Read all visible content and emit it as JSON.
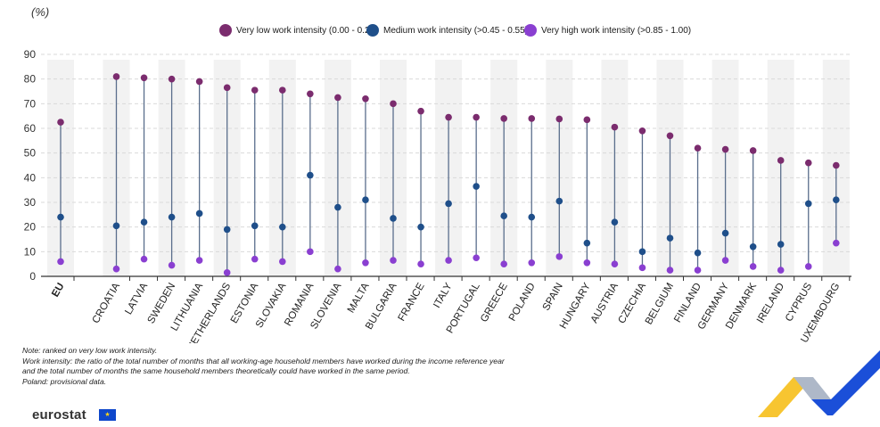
{
  "unit_label": "(%)",
  "chart_data": {
    "type": "scatter",
    "style": "dot-plot with vertical range lines",
    "categories": [
      "EU",
      "CROATIA",
      "LATVIA",
      "SWEDEN",
      "LITHUANIA",
      "NETHERLANDS",
      "ESTONIA",
      "SLOVAKIA",
      "ROMANIA",
      "SLOVENIA",
      "MALTA",
      "BULGARIA",
      "FRANCE",
      "ITALY",
      "PORTUGAL",
      "GREECE",
      "POLAND",
      "SPAIN",
      "HUNGARY",
      "AUSTRIA",
      "CZECHIA",
      "BELGIUM",
      "FINLAND",
      "GERMANY",
      "DENMARK",
      "IRELAND",
      "CYPRUS",
      "LUXEMBOURG"
    ],
    "series": [
      {
        "name": "Very low work intensity (0.00 - 0.20)",
        "color": "#7b2c6e",
        "values": [
          62.5,
          81,
          80.5,
          80,
          79,
          76.5,
          75.5,
          75.5,
          74,
          72.5,
          72,
          70,
          67,
          64.5,
          64.5,
          64,
          64,
          63.8,
          63.5,
          60.5,
          59,
          57,
          52,
          51.5,
          51,
          47,
          46,
          45
        ]
      },
      {
        "name": "Medium work intensity (>0.45 - 0.55)",
        "color": "#1f4f8a",
        "values": [
          24,
          20.5,
          22,
          24,
          25.5,
          19,
          20.5,
          20,
          41,
          28,
          31,
          23.5,
          20,
          29.5,
          36.5,
          24.5,
          24,
          30.5,
          13.5,
          22,
          10,
          15.5,
          9.5,
          17.5,
          12,
          13,
          29.5,
          31
        ]
      },
      {
        "name": "Very high work intensity (>0.85 - 1.00)",
        "color": "#8a3fd1",
        "values": [
          6,
          3,
          7,
          4.5,
          6.5,
          1.5,
          7,
          6,
          10,
          3,
          5.5,
          6.5,
          5,
          6.5,
          7.5,
          5,
          5.5,
          8,
          5.5,
          5,
          3.5,
          2.5,
          2.5,
          6.5,
          4,
          2.5,
          4,
          13.5
        ]
      }
    ],
    "ylim": [
      0,
      90
    ],
    "yticks": [
      0,
      10,
      20,
      30,
      40,
      50,
      60,
      70,
      80,
      90
    ],
    "grid": true,
    "legend": "top-center"
  },
  "notes": [
    "Note: ranked on very low work intensity.",
    "Work intensity: the ratio of the total number of months that all working-age household members have worked during the income reference year",
    "and the total number of months the same household members theoretically could have worked in the same period.",
    "Poland: provisional data."
  ],
  "logo": {
    "text": "eurostat",
    "flag_glyph": "★"
  },
  "colors": {
    "band": "#f2f2f2",
    "line": "#5a6e8c",
    "axis": "#333333"
  }
}
